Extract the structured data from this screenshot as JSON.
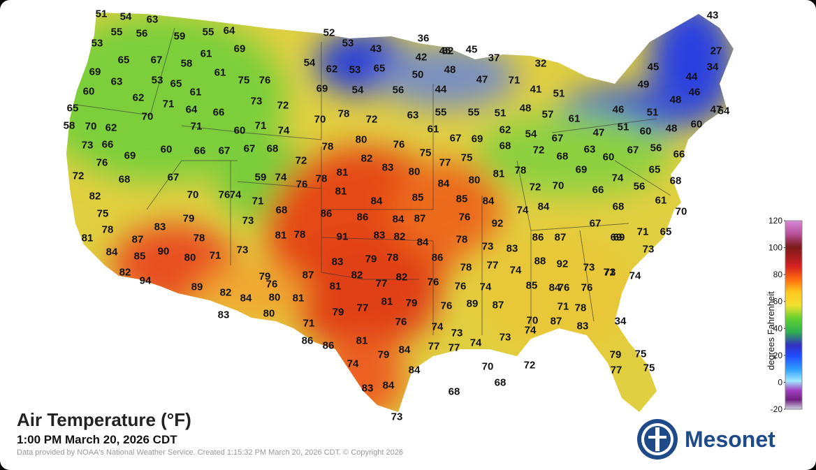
{
  "title": "Air Temperature (°F)",
  "subtitle": "1:00 PM March 20, 2026 CDT",
  "credit": "Data provided by NOAA's National Weather Service. Created 1:15:32 PM March 20, 2026 CDT. © Copyright 2026",
  "logo_text": "Mesonet",
  "legend": {
    "label": "degrees Fahrenheit",
    "ticks": [
      "120",
      "100",
      "80",
      "60",
      "40",
      "20",
      "0",
      "-20"
    ]
  },
  "observations": [
    "51",
    "54",
    "63",
    "55",
    "56",
    "59",
    "55",
    "64",
    "53",
    "61",
    "69",
    "65",
    "67",
    "58",
    "61",
    "69",
    "63",
    "53",
    "65",
    "75",
    "76",
    "60",
    "62",
    "71",
    "61",
    "64",
    "66",
    "73",
    "72",
    "65",
    "70",
    "58",
    "70",
    "62",
    "71",
    "60",
    "71",
    "74",
    "73",
    "66",
    "69",
    "60",
    "66",
    "67",
    "67",
    "68",
    "76",
    "72",
    "68",
    "72",
    "67",
    "59",
    "74",
    "76",
    "82",
    "70",
    "74",
    "71",
    "68",
    "79",
    "73",
    "75",
    "78",
    "87",
    "83",
    "78",
    "81",
    "84",
    "85",
    "90",
    "80",
    "71",
    "73",
    "82",
    "94",
    "89",
    "82",
    "84",
    "76",
    "79",
    "80",
    "81",
    "83",
    "80",
    "52",
    "53",
    "43",
    "36",
    "45",
    "45",
    "37",
    "32",
    "42",
    "62",
    "62",
    "53",
    "65",
    "54",
    "50",
    "48",
    "47",
    "71",
    "69",
    "54",
    "56",
    "44",
    "41",
    "51",
    "70",
    "78",
    "72",
    "63",
    "55",
    "55",
    "51",
    "48",
    "57",
    "61",
    "61",
    "67",
    "69",
    "62",
    "54",
    "67",
    "78",
    "80",
    "76",
    "75",
    "77",
    "75",
    "68",
    "72",
    "68",
    "82",
    "83",
    "80",
    "81",
    "78",
    "76",
    "81",
    "84",
    "80",
    "78",
    "72",
    "70",
    "81",
    "84",
    "85",
    "85",
    "84",
    "86",
    "86",
    "84",
    "87",
    "76",
    "74",
    "84",
    "92",
    "91",
    "83",
    "82",
    "84",
    "78",
    "81",
    "78",
    "73",
    "83",
    "86",
    "87",
    "86",
    "83",
    "79",
    "78",
    "78",
    "77",
    "74",
    "88",
    "92",
    "87",
    "82",
    "77",
    "82",
    "76",
    "76",
    "74",
    "85",
    "84",
    "81",
    "81",
    "79",
    "76",
    "89",
    "87",
    "79",
    "77",
    "76",
    "74",
    "73",
    "71",
    "74",
    "87",
    "83",
    "77",
    "77",
    "74",
    "73",
    "86",
    "86",
    "81",
    "79",
    "84",
    "74",
    "84",
    "83",
    "84",
    "73",
    "68",
    "70",
    "68",
    "72",
    "71",
    "70",
    "34",
    "43",
    "27",
    "45",
    "44",
    "34",
    "49",
    "48",
    "46",
    "46",
    "51",
    "47",
    "51",
    "47",
    "54",
    "60",
    "48",
    "60",
    "60",
    "63",
    "67",
    "56",
    "66",
    "69",
    "65",
    "74",
    "56",
    "68",
    "66",
    "68",
    "61",
    "70",
    "67",
    "71",
    "65",
    "69",
    "73",
    "69",
    "71",
    "74",
    "73",
    "73",
    "76",
    "76",
    "78",
    "77",
    "79",
    "75",
    "75"
  ]
}
